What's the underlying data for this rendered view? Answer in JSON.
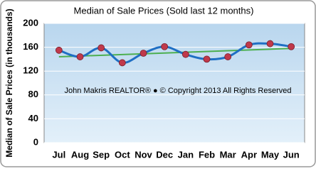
{
  "chart_data": {
    "type": "line",
    "title": "Median of Sale Prices (Sold last 12 months)",
    "y_label": "Median of Sale Prices (in thousands)",
    "annotation": "John Makris REALTOR®  ●  © Copyright 2013 All Rights Reserved",
    "categories": [
      "Jul",
      "Aug",
      "Sep",
      "Oct",
      "Nov",
      "Dec",
      "Jan",
      "Feb",
      "Mar",
      "Apr",
      "May",
      "Jun"
    ],
    "series": [
      {
        "color": "#1f6fc4",
        "marker_color": "#c0394b",
        "values": [
          155,
          144,
          159,
          134,
          150,
          161,
          148,
          140,
          144,
          164,
          166,
          161
        ]
      }
    ],
    "trendline": {
      "color": "#4caf50",
      "values": [
        144,
        158
      ]
    },
    "ylim": [
      0,
      200
    ],
    "yticks": [
      0,
      40,
      80,
      120,
      160,
      200
    ],
    "grid": true
  }
}
